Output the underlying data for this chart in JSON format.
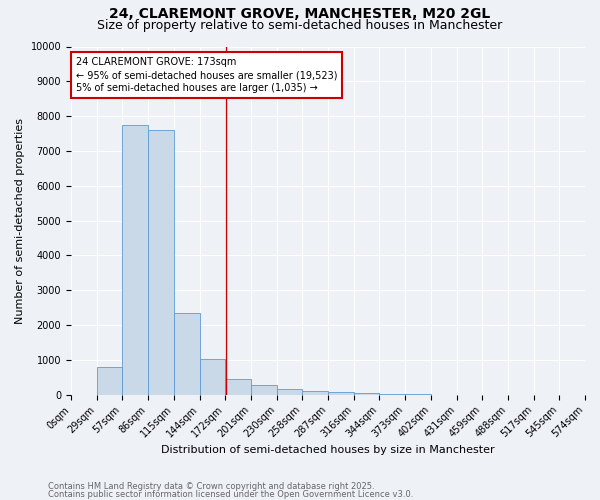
{
  "title": "24, CLAREMONT GROVE, MANCHESTER, M20 2GL",
  "subtitle": "Size of property relative to semi-detached houses in Manchester",
  "xlabel": "Distribution of semi-detached houses by size in Manchester",
  "ylabel": "Number of semi-detached properties",
  "bin_labels": [
    "0sqm",
    "29sqm",
    "57sqm",
    "86sqm",
    "115sqm",
    "144sqm",
    "172sqm",
    "201sqm",
    "230sqm",
    "258sqm",
    "287sqm",
    "316sqm",
    "344sqm",
    "373sqm",
    "402sqm",
    "431sqm",
    "459sqm",
    "488sqm",
    "517sqm",
    "545sqm",
    "574sqm"
  ],
  "bin_edges": [
    0,
    29,
    57,
    86,
    115,
    144,
    172,
    201,
    230,
    258,
    287,
    316,
    344,
    373,
    402,
    431,
    459,
    488,
    517,
    545,
    574
  ],
  "bar_heights": [
    0,
    800,
    7750,
    7600,
    2350,
    1020,
    450,
    280,
    160,
    110,
    80,
    40,
    20,
    10,
    5,
    3,
    2,
    1,
    1,
    0,
    0
  ],
  "bar_color": "#c9d9e8",
  "bar_edgecolor": "#5b9bd5",
  "property_size": 173,
  "property_line_color": "#cc0000",
  "annotation_line1": "24 CLAREMONT GROVE: 173sqm",
  "annotation_line2": "← 95% of semi-detached houses are smaller (19,523)",
  "annotation_line3": "5% of semi-detached houses are larger (1,035) →",
  "annotation_box_color": "#ffffff",
  "annotation_box_edgecolor": "#cc0000",
  "ylim": [
    0,
    10000
  ],
  "yticks": [
    0,
    1000,
    2000,
    3000,
    4000,
    5000,
    6000,
    7000,
    8000,
    9000,
    10000
  ],
  "footer_line1": "Contains HM Land Registry data © Crown copyright and database right 2025.",
  "footer_line2": "Contains public sector information licensed under the Open Government Licence v3.0.",
  "bg_color": "#eef2f7",
  "grid_color": "#ffffff",
  "title_fontsize": 10,
  "subtitle_fontsize": 9,
  "axis_fontsize": 8,
  "tick_fontsize": 7
}
